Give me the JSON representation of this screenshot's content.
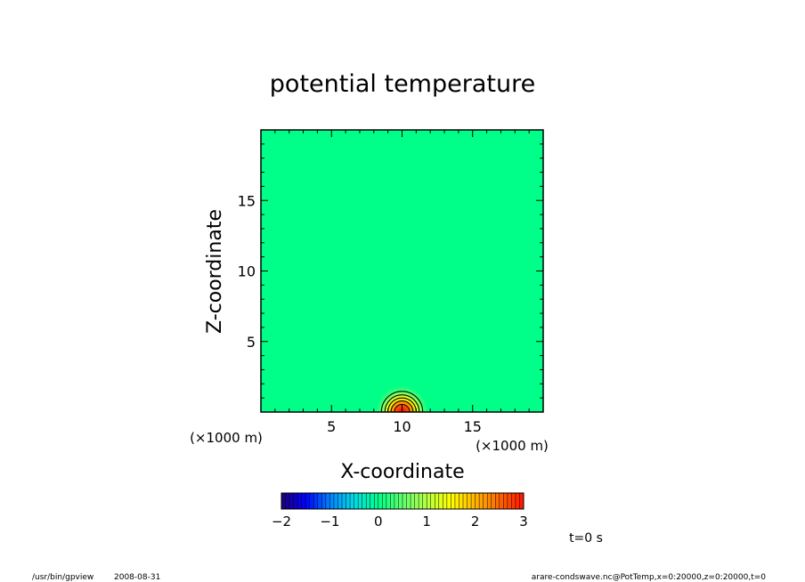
{
  "chart_data": {
    "type": "heatmap",
    "title": "potential temperature",
    "xlabel": "X-coordinate",
    "ylabel": "Z-coordinate",
    "x_unit": "(×1000 m)",
    "y_unit": "(×1000 m)",
    "xlim": [
      0,
      20
    ],
    "ylim": [
      0,
      20
    ],
    "x_ticks": [
      5,
      10,
      15
    ],
    "y_ticks": [
      5,
      10,
      15
    ],
    "x_minor_step": 1,
    "y_minor_step": 1,
    "background_value": 0,
    "bubble": {
      "center_x": 10,
      "center_z": 0,
      "peak_value": 3,
      "radius": 2
    },
    "contour_levels": [
      0.5,
      1,
      1.5,
      2,
      2.5
    ],
    "colorbar": {
      "min": -2,
      "max": 3,
      "ticks": [
        "−2",
        "−1",
        "0",
        "1",
        "2",
        "3"
      ],
      "bands": 60
    },
    "time_label": "t=0 s",
    "colors": {
      "background": "#00ff88"
    }
  },
  "footer": {
    "left_path": "/usr/bin/gpview",
    "date": "2008-08-31",
    "right_source": "arare-condswave.nc@PotTemp,x=0:20000,z=0:20000,t=0"
  }
}
